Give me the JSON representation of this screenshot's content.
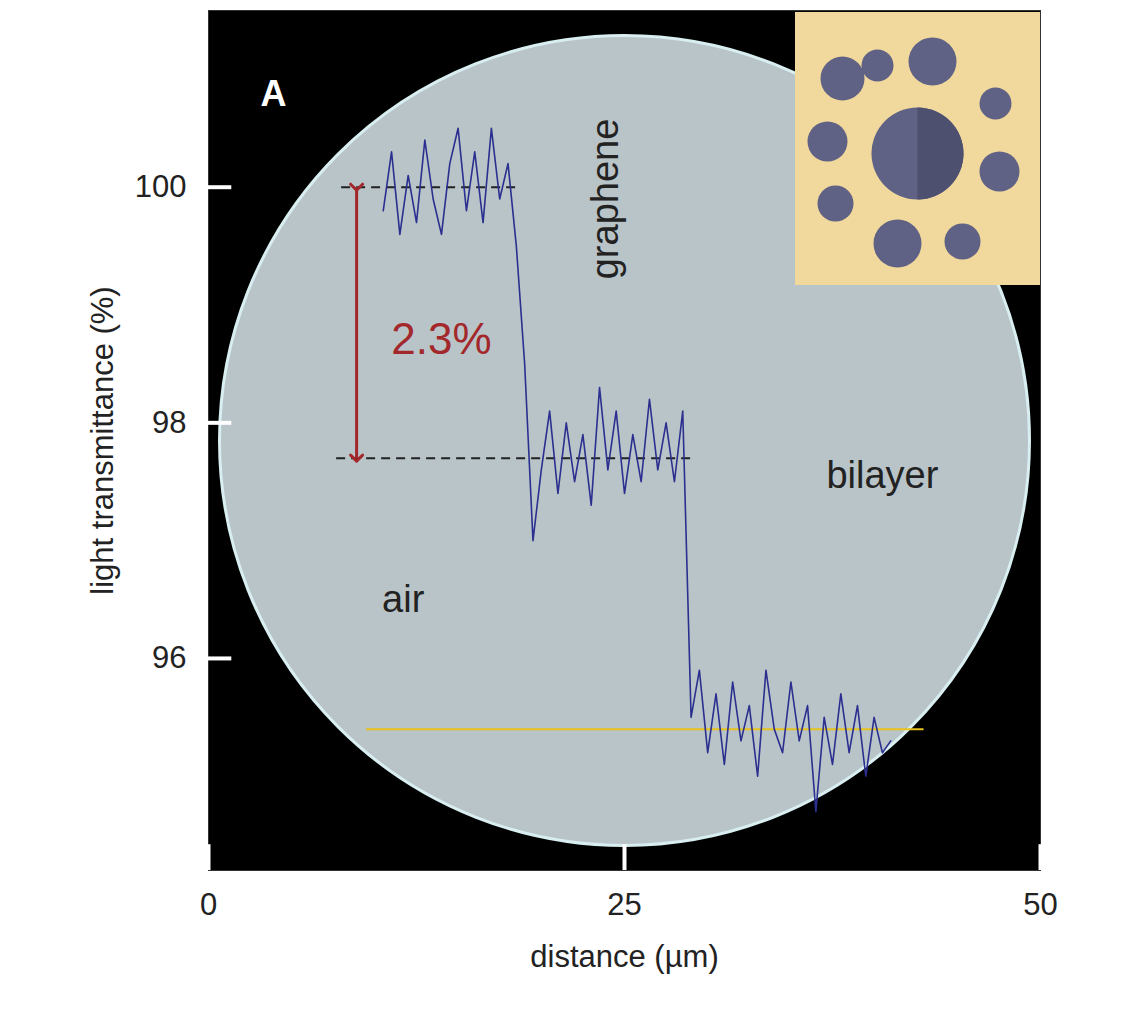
{
  "chart_data": {
    "type": "line",
    "panel_label": "A",
    "xlabel": "distance (µm)",
    "ylabel": "light transmittance (%)",
    "xlim": [
      0,
      50
    ],
    "ylim": [
      94.2,
      101.5
    ],
    "xticks": [
      0,
      25,
      50
    ],
    "yticks": [
      96,
      98,
      100
    ],
    "color": "#2b2f8f",
    "x": [
      10.5,
      11,
      11.5,
      12,
      12.5,
      13,
      13.5,
      14,
      14.5,
      15,
      15.5,
      16,
      16.5,
      17,
      17.5,
      18,
      18.5,
      19,
      19.5,
      20,
      20.5,
      21,
      21.5,
      22,
      22.5,
      23,
      23.5,
      24,
      24.5,
      25,
      25.5,
      26,
      26.5,
      27,
      27.5,
      28,
      28.5,
      29,
      29.5,
      30,
      30.5,
      31,
      31.5,
      32,
      32.5,
      33,
      33.5,
      34,
      34.5,
      35,
      35.5,
      36,
      36.5,
      37,
      37.5,
      38,
      38.5,
      39,
      39.5,
      40,
      40.5,
      41
    ],
    "values": [
      99.8,
      100.3,
      99.6,
      100.1,
      99.7,
      100.4,
      99.9,
      99.6,
      100.2,
      100.5,
      99.8,
      100.3,
      99.7,
      100.5,
      99.9,
      100.2,
      99.5,
      98.5,
      97.0,
      97.6,
      98.1,
      97.4,
      98.0,
      97.5,
      97.9,
      97.3,
      98.3,
      97.6,
      98.1,
      97.4,
      97.9,
      97.5,
      98.2,
      97.6,
      98.0,
      97.5,
      98.1,
      95.5,
      95.9,
      95.2,
      95.7,
      95.1,
      95.8,
      95.3,
      95.6,
      95.0,
      95.9,
      95.4,
      95.2,
      95.8,
      95.3,
      95.6,
      94.7,
      95.5,
      95.1,
      95.7,
      95.2,
      95.6,
      95.0,
      95.5,
      95.2,
      95.3
    ],
    "reference_lines": [
      {
        "y": 100,
        "x": [
          8,
          18.8
        ],
        "line_style": "dashed",
        "color": "#222222"
      },
      {
        "y": 97.7,
        "x": [
          7.7,
          29
        ],
        "line_style": "dashed",
        "color": "#222222"
      },
      {
        "y": 95.4,
        "x": [
          9.5,
          43
        ],
        "line_style": "solid",
        "color": "#e8c21a"
      }
    ],
    "arrow": {
      "x": 8.9,
      "y": [
        100,
        97.7
      ],
      "color": "#a3282b"
    },
    "annotations": [
      {
        "text": "2.3%",
        "x": 14,
        "y": 98.7,
        "color": "#a3282b"
      },
      {
        "text": "graphene",
        "x": 23.9,
        "y": 99.9,
        "color": "#222222",
        "orientation": "vertical"
      },
      {
        "text": "air",
        "x": 11.7,
        "y": 96.5,
        "color": "#222222"
      },
      {
        "text": "bilayer",
        "x": 40.5,
        "y": 97.55,
        "color": "#222222"
      }
    ]
  }
}
